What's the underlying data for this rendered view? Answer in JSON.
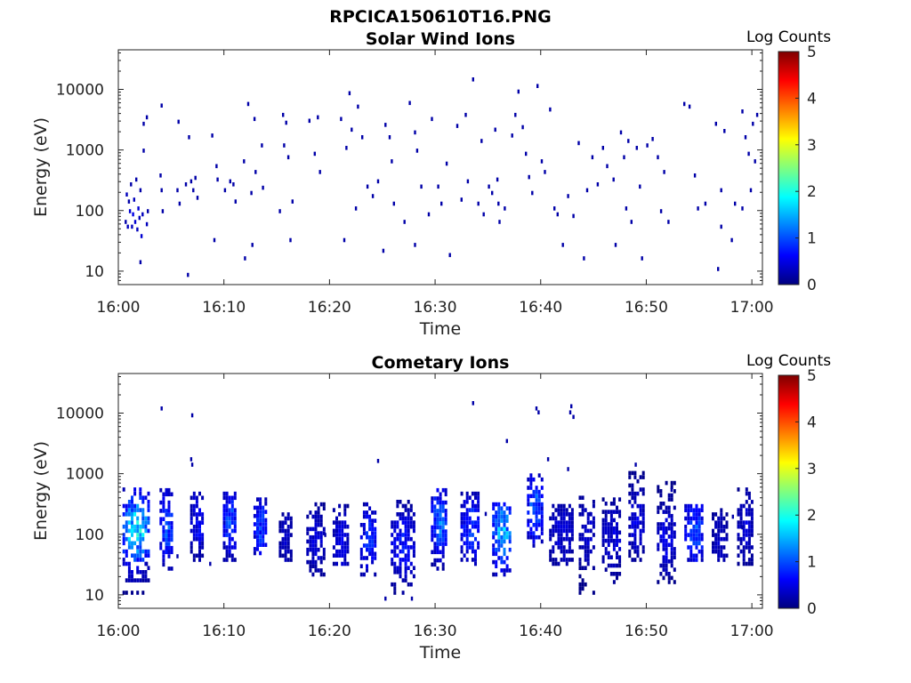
{
  "figure": {
    "title": "RPCICA150610T16.PNG"
  },
  "colors": {
    "colormap": [
      "#00007f",
      "#0000ff",
      "#007fff",
      "#00ffff",
      "#7fff7f",
      "#ffff00",
      "#ff7f00",
      "#ff0000",
      "#7f0000"
    ],
    "axis": "#222222"
  },
  "chart_data": [
    {
      "type": "heatmap",
      "title": "Solar Wind Ions",
      "xlabel": "Time",
      "ylabel": "Energy (eV)",
      "xticks": [
        "16:00",
        "16:10",
        "16:20",
        "16:30",
        "16:40",
        "16:50",
        "17:00"
      ],
      "xlim_minutes": [
        0,
        61
      ],
      "ylim": [
        6,
        45000
      ],
      "yscale": "log",
      "yticks": [
        10,
        100,
        1000,
        10000
      ],
      "ytick_labels": [
        "10",
        "100",
        "1000",
        "10000"
      ],
      "colorbar": {
        "label": "Log Counts",
        "range": [
          0,
          5
        ],
        "ticks": [
          "0",
          "1",
          "2",
          "3",
          "4",
          "5"
        ]
      },
      "points": [
        [
          0.6,
          60,
          0.2
        ],
        [
          0.7,
          170,
          0.3
        ],
        [
          0.8,
          50,
          0.3
        ],
        [
          0.9,
          130,
          0.2
        ],
        [
          1.0,
          90,
          0.4
        ],
        [
          1.1,
          250,
          0.2
        ],
        [
          1.2,
          50,
          0.3
        ],
        [
          1.3,
          80,
          0.5
        ],
        [
          1.4,
          140,
          0.3
        ],
        [
          1.5,
          60,
          0.4
        ],
        [
          1.6,
          300,
          0.2
        ],
        [
          1.7,
          45,
          0.3
        ],
        [
          1.8,
          100,
          0.4
        ],
        [
          1.9,
          70,
          0.3
        ],
        [
          2.0,
          200,
          0.2
        ],
        [
          2.1,
          35,
          0.4
        ],
        [
          2.2,
          80,
          0.3
        ],
        [
          2.0,
          13,
          0.2
        ],
        [
          2.3,
          2500,
          0.2
        ],
        [
          2.6,
          3200,
          0.2
        ],
        [
          2.3,
          900,
          0.2
        ],
        [
          2.6,
          55,
          0.3
        ],
        [
          2.7,
          90,
          0.2
        ],
        [
          3.9,
          350,
          0.2
        ],
        [
          4.0,
          200,
          0.2
        ],
        [
          4.0,
          5000,
          0.2
        ],
        [
          4.1,
          90,
          0.2
        ],
        [
          5.5,
          200,
          0.2
        ],
        [
          5.6,
          2700,
          0.2
        ],
        [
          5.7,
          120,
          0.2
        ],
        [
          6.3,
          250,
          0.2
        ],
        [
          6.5,
          8,
          0.2
        ],
        [
          6.6,
          1500,
          0.2
        ],
        [
          6.8,
          280,
          0.2
        ],
        [
          7.0,
          200,
          0.2
        ],
        [
          7.2,
          320,
          0.2
        ],
        [
          7.4,
          150,
          0.2
        ],
        [
          8.8,
          1600,
          0.2
        ],
        [
          9.0,
          30,
          0.2
        ],
        [
          9.2,
          500,
          0.2
        ],
        [
          9.3,
          300,
          0.2
        ],
        [
          10.0,
          200,
          0.2
        ],
        [
          10.5,
          280,
          0.2
        ],
        [
          10.8,
          250,
          0.2
        ],
        [
          11.0,
          130,
          0.2
        ],
        [
          11.8,
          600,
          0.2
        ],
        [
          11.9,
          15,
          0.2
        ],
        [
          12.2,
          5300,
          0.2
        ],
        [
          12.5,
          180,
          0.2
        ],
        [
          12.6,
          25,
          0.2
        ],
        [
          12.8,
          3000,
          0.2
        ],
        [
          12.9,
          400,
          0.2
        ],
        [
          13.5,
          1100,
          0.2
        ],
        [
          13.6,
          220,
          0.2
        ],
        [
          15.2,
          90,
          0.2
        ],
        [
          15.5,
          3500,
          0.2
        ],
        [
          15.6,
          1100,
          0.2
        ],
        [
          15.8,
          2600,
          0.2
        ],
        [
          16.0,
          700,
          0.2
        ],
        [
          16.2,
          30,
          0.2
        ],
        [
          16.4,
          130,
          0.2
        ],
        [
          18.0,
          2800,
          0.2
        ],
        [
          18.5,
          800,
          0.2
        ],
        [
          18.8,
          3200,
          0.2
        ],
        [
          19.0,
          400,
          0.2
        ],
        [
          21.0,
          3000,
          0.2
        ],
        [
          21.3,
          30,
          0.2
        ],
        [
          21.5,
          1000,
          0.2
        ],
        [
          21.8,
          8000,
          0.2
        ],
        [
          22.0,
          2000,
          0.2
        ],
        [
          22.4,
          100,
          0.2
        ],
        [
          22.6,
          4800,
          0.2
        ],
        [
          23.0,
          1500,
          0.2
        ],
        [
          23.5,
          230,
          0.2
        ],
        [
          24.0,
          160,
          0.2
        ],
        [
          24.5,
          280,
          0.2
        ],
        [
          25.0,
          20,
          0.2
        ],
        [
          25.2,
          2400,
          0.2
        ],
        [
          25.6,
          1500,
          0.2
        ],
        [
          25.8,
          600,
          0.2
        ],
        [
          26.0,
          120,
          0.2
        ],
        [
          27.0,
          60,
          0.2
        ],
        [
          27.5,
          5500,
          0.2
        ],
        [
          28.0,
          1800,
          0.2
        ],
        [
          28.2,
          900,
          0.2
        ],
        [
          28.0,
          25,
          0.2
        ],
        [
          28.6,
          230,
          0.2
        ],
        [
          29.3,
          80,
          0.2
        ],
        [
          29.6,
          3000,
          0.2
        ],
        [
          30.2,
          230,
          0.2
        ],
        [
          30.5,
          120,
          0.2
        ],
        [
          31.0,
          550,
          0.2
        ],
        [
          31.3,
          17,
          0.2
        ],
        [
          32.0,
          2300,
          0.2
        ],
        [
          32.4,
          140,
          0.2
        ],
        [
          32.8,
          3500,
          0.2
        ],
        [
          33.0,
          280,
          0.2
        ],
        [
          33.5,
          13500,
          0.2
        ],
        [
          34.0,
          120,
          0.2
        ],
        [
          34.3,
          1300,
          0.2
        ],
        [
          34.5,
          80,
          0.2
        ],
        [
          35.0,
          230,
          0.2
        ],
        [
          35.3,
          180,
          0.2
        ],
        [
          35.6,
          2000,
          0.2
        ],
        [
          35.8,
          300,
          0.2
        ],
        [
          35.9,
          120,
          0.2
        ],
        [
          36.0,
          60,
          0.2
        ],
        [
          36.5,
          100,
          0.2
        ],
        [
          37.2,
          1600,
          0.2
        ],
        [
          37.5,
          3500,
          0.2
        ],
        [
          37.8,
          8500,
          0.2
        ],
        [
          38.2,
          2200,
          0.2
        ],
        [
          38.5,
          800,
          0.2
        ],
        [
          38.8,
          330,
          0.2
        ],
        [
          39.1,
          180,
          0.2
        ],
        [
          39.6,
          10500,
          0.2
        ],
        [
          40.0,
          600,
          0.2
        ],
        [
          40.3,
          400,
          0.2
        ],
        [
          40.8,
          4300,
          0.2
        ],
        [
          41.2,
          100,
          0.2
        ],
        [
          41.5,
          80,
          0.2
        ],
        [
          42.0,
          25,
          0.2
        ],
        [
          42.5,
          160,
          0.2
        ],
        [
          43.0,
          75,
          0.2
        ],
        [
          43.5,
          1200,
          0.2
        ],
        [
          44.0,
          15,
          0.2
        ],
        [
          44.3,
          200,
          0.2
        ],
        [
          44.8,
          700,
          0.2
        ],
        [
          45.3,
          250,
          0.2
        ],
        [
          45.8,
          1000,
          0.2
        ],
        [
          46.2,
          500,
          0.2
        ],
        [
          46.8,
          300,
          0.2
        ],
        [
          47.0,
          25,
          0.2
        ],
        [
          47.5,
          1800,
          0.2
        ],
        [
          47.8,
          700,
          0.2
        ],
        [
          48.2,
          1300,
          0.2
        ],
        [
          48.5,
          60,
          0.2
        ],
        [
          49.0,
          1000,
          0.2
        ],
        [
          49.3,
          230,
          0.2
        ],
        [
          49.5,
          15,
          0.2
        ],
        [
          50.0,
          1100,
          0.2
        ],
        [
          50.5,
          1400,
          0.2
        ],
        [
          51.0,
          700,
          0.2
        ],
        [
          51.3,
          90,
          0.2
        ],
        [
          51.6,
          400,
          0.2
        ],
        [
          52.0,
          60,
          0.2
        ],
        [
          53.5,
          5300,
          0.2
        ],
        [
          54.0,
          4800,
          0.2
        ],
        [
          54.5,
          350,
          0.2
        ],
        [
          54.8,
          100,
          0.2
        ],
        [
          56.5,
          2500,
          0.2
        ],
        [
          56.7,
          10,
          0.2
        ],
        [
          57.0,
          200,
          0.2
        ],
        [
          57.3,
          1900,
          0.2
        ],
        [
          58.0,
          30,
          0.2
        ],
        [
          58.3,
          120,
          0.2
        ],
        [
          59.0,
          4000,
          0.2
        ],
        [
          59.3,
          1500,
          0.2
        ],
        [
          59.6,
          800,
          0.2
        ],
        [
          59.8,
          200,
          0.2
        ],
        [
          60.0,
          2500,
          0.2
        ],
        [
          60.2,
          600,
          0.2
        ],
        [
          60.4,
          3500,
          0.2
        ],
        [
          59.0,
          100,
          0.2
        ],
        [
          57.0,
          50,
          0.2
        ],
        [
          55.5,
          120,
          0.2
        ],
        [
          48.0,
          100,
          0.2
        ]
      ]
    },
    {
      "type": "heatmap",
      "title": "Cometary Ions",
      "xlabel": "Time",
      "ylabel": "Energy (eV)",
      "xticks": [
        "16:00",
        "16:10",
        "16:20",
        "16:30",
        "16:40",
        "16:50",
        "17:00"
      ],
      "xlim_minutes": [
        0,
        61
      ],
      "ylim": [
        6,
        45000
      ],
      "yscale": "log",
      "yticks": [
        10,
        100,
        1000,
        10000
      ],
      "ytick_labels": [
        "10",
        "100",
        "1000",
        "10000"
      ],
      "colorbar": {
        "label": "Log Counts",
        "range": [
          0,
          5
        ],
        "ticks": [
          "0",
          "1",
          "2",
          "3",
          "4",
          "5"
        ]
      },
      "bursts": [
        {
          "t0": 0.4,
          "t1": 2.8,
          "e_low": 10,
          "e_high": 550,
          "e_peak": 110,
          "peak": 2.0
        },
        {
          "t0": 3.9,
          "t1": 5.1,
          "e_low": 25,
          "e_high": 550,
          "e_peak": 120,
          "peak": 1.2
        },
        {
          "t0": 6.8,
          "t1": 8.0,
          "e_low": 35,
          "e_high": 450,
          "e_peak": 150,
          "peak": 0.7
        },
        {
          "t0": 9.9,
          "t1": 11.1,
          "e_low": 35,
          "e_high": 450,
          "e_peak": 150,
          "peak": 1.1
        },
        {
          "t0": 12.8,
          "t1": 14.0,
          "e_low": 45,
          "e_high": 450,
          "e_peak": 120,
          "peak": 1.0
        },
        {
          "t0": 15.2,
          "t1": 16.3,
          "e_low": 35,
          "e_high": 250,
          "e_peak": 80,
          "peak": 0.4
        },
        {
          "t0": 17.8,
          "t1": 19.4,
          "e_low": 20,
          "e_high": 300,
          "e_peak": 70,
          "peak": 0.5
        },
        {
          "t0": 20.3,
          "t1": 21.7,
          "e_low": 30,
          "e_high": 300,
          "e_peak": 70,
          "peak": 0.6
        },
        {
          "t0": 22.9,
          "t1": 24.4,
          "e_low": 20,
          "e_high": 300,
          "e_peak": 80,
          "peak": 0.9
        },
        {
          "t0": 25.8,
          "t1": 28.0,
          "e_low": 10,
          "e_high": 350,
          "e_peak": 60,
          "peak": 0.8
        },
        {
          "t0": 29.6,
          "t1": 31.1,
          "e_low": 25,
          "e_high": 500,
          "e_peak": 150,
          "peak": 1.3
        },
        {
          "t0": 32.4,
          "t1": 34.2,
          "e_low": 30,
          "e_high": 500,
          "e_peak": 120,
          "peak": 1.0
        },
        {
          "t0": 35.4,
          "t1": 37.2,
          "e_low": 20,
          "e_high": 300,
          "e_peak": 100,
          "peak": 1.7
        },
        {
          "t0": 38.7,
          "t1": 40.0,
          "e_low": 60,
          "e_high": 1000,
          "e_peak": 250,
          "peak": 1.3
        },
        {
          "t0": 40.8,
          "t1": 43.0,
          "e_low": 30,
          "e_high": 300,
          "e_peak": 100,
          "peak": 0.5
        },
        {
          "t0": 43.6,
          "t1": 45.0,
          "e_low": 10,
          "e_high": 400,
          "e_peak": 100,
          "peak": 0.5
        },
        {
          "t0": 45.8,
          "t1": 47.6,
          "e_low": 15,
          "e_high": 350,
          "e_peak": 80,
          "peak": 0.5
        },
        {
          "t0": 48.3,
          "t1": 49.8,
          "e_low": 35,
          "e_high": 1100,
          "e_peak": 150,
          "peak": 0.6
        },
        {
          "t0": 51.0,
          "t1": 52.6,
          "e_low": 15,
          "e_high": 650,
          "e_peak": 80,
          "peak": 0.6
        },
        {
          "t0": 53.6,
          "t1": 55.4,
          "e_low": 35,
          "e_high": 300,
          "e_peak": 100,
          "peak": 1.1
        },
        {
          "t0": 56.2,
          "t1": 57.5,
          "e_low": 35,
          "e_high": 250,
          "e_peak": 70,
          "peak": 0.4
        },
        {
          "t0": 58.6,
          "t1": 60.0,
          "e_low": 30,
          "e_high": 550,
          "e_peak": 120,
          "peak": 0.5
        }
      ],
      "points": [
        [
          4.0,
          11000,
          0.2
        ],
        [
          6.9,
          8500,
          0.2
        ],
        [
          6.8,
          1600,
          0.2
        ],
        [
          6.9,
          1300,
          0.2
        ],
        [
          24.5,
          1500,
          0.2
        ],
        [
          33.5,
          13500,
          0.2
        ],
        [
          36.7,
          3200,
          0.2
        ],
        [
          39.5,
          11000,
          0.2
        ],
        [
          39.7,
          9500,
          0.2
        ],
        [
          40.6,
          1600,
          0.2
        ],
        [
          42.5,
          1100,
          0.2
        ],
        [
          42.7,
          9500,
          0.2
        ],
        [
          42.8,
          12000,
          0.2
        ],
        [
          43.0,
          8000,
          0.2
        ],
        [
          2.6,
          30,
          0.2
        ],
        [
          5.5,
          40,
          0.2
        ],
        [
          8.6,
          30,
          0.2
        ],
        [
          19.5,
          90,
          0.2
        ],
        [
          25.2,
          8,
          0.2
        ],
        [
          27.7,
          8,
          0.2
        ],
        [
          34.7,
          200,
          0.2
        ],
        [
          44.6,
          200,
          0.2
        ],
        [
          48.9,
          1300,
          0.2
        ],
        [
          52.3,
          500,
          0.2
        ],
        [
          58.1,
          180,
          0.2
        ],
        [
          59.0,
          120,
          0.2
        ]
      ]
    }
  ]
}
